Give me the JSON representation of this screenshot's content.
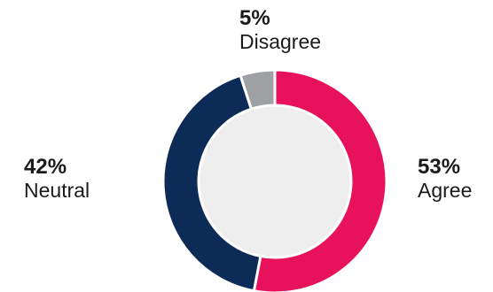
{
  "chart_data": {
    "type": "pie",
    "donut": true,
    "categories": [
      "Agree",
      "Neutral",
      "Disagree"
    ],
    "values": [
      53,
      42,
      5
    ],
    "value_labels": [
      "53%",
      "42%",
      "5%"
    ],
    "colors": [
      "#e8125c",
      "#0d2b57",
      "#9ea0a4"
    ],
    "center_color": "#eeeeee",
    "start": "top, clockwise"
  },
  "labels": {
    "agree": {
      "pct": "53%",
      "name": "Agree"
    },
    "neutral": {
      "pct": "42%",
      "name": "Neutral"
    },
    "disagree": {
      "pct": "5%",
      "name": "Disagree"
    }
  }
}
